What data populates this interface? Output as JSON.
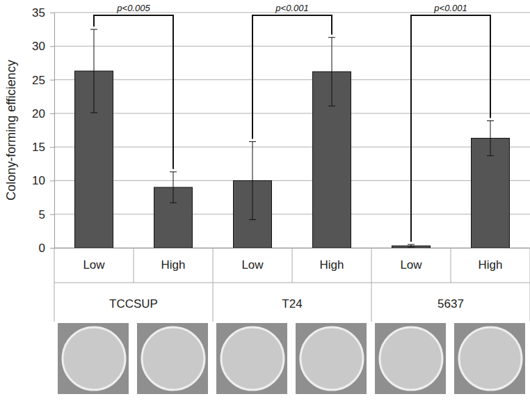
{
  "chart_data": {
    "type": "bar",
    "y_label": "Colony-forming efficiency",
    "categories": [
      "Low",
      "High",
      "Low",
      "High",
      "Low",
      "High"
    ],
    "groups": [
      "TCCSUP",
      "T24",
      "5637"
    ],
    "values": [
      26.3,
      9.0,
      10.0,
      26.2,
      0.3,
      16.3
    ],
    "errors": [
      6.2,
      2.3,
      5.8,
      5.1,
      0.2,
      2.6
    ],
    "annotations": [
      "p<0.005",
      "p<0.001",
      "p<0.001"
    ],
    "color": "#555555",
    "ylim": [
      0,
      35
    ],
    "yticks": [
      0,
      5,
      10,
      15,
      20,
      25,
      30,
      35
    ],
    "grid": true
  }
}
